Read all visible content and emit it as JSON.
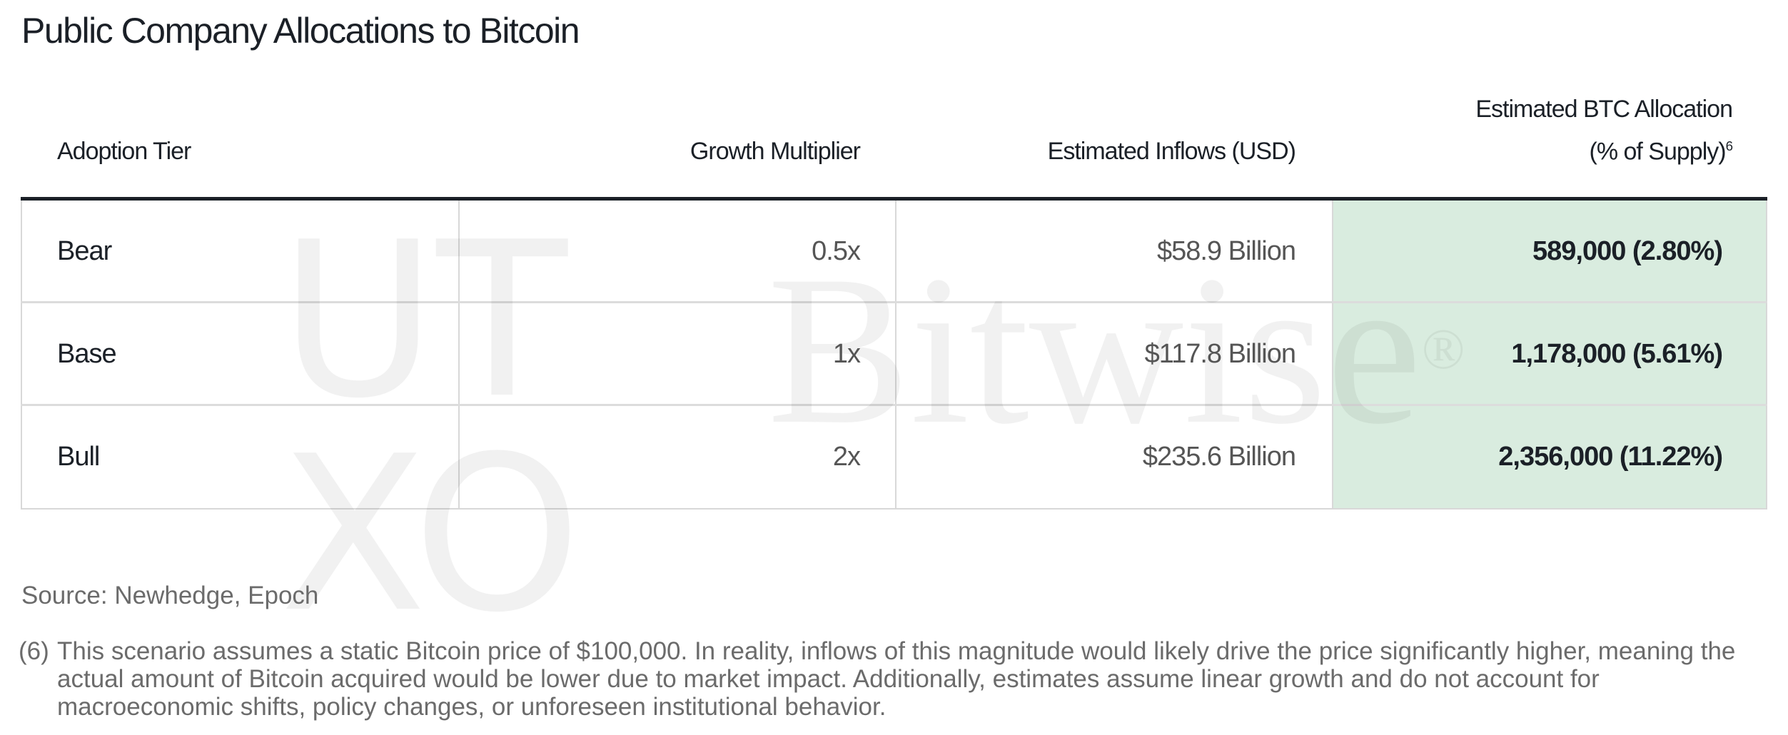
{
  "title": "Public Company Allocations to Bitcoin",
  "table": {
    "headers": [
      "Adoption Tier",
      "Growth Multiplier",
      "Estimated Inflows (USD)",
      "Estimated BTC Allocation",
      "(% of Supply)",
      "6"
    ],
    "rows": [
      {
        "tier": "Bear",
        "multiplier": "0.5x",
        "inflows": "$58.9 Billion",
        "allocation": "589,000 (2.80%)"
      },
      {
        "tier": "Base",
        "multiplier": "1x",
        "inflows": "$117.8 Billion",
        "allocation": "1,178,000 (5.61%)"
      },
      {
        "tier": "Bull",
        "multiplier": "2x",
        "inflows": "$235.6 Billion",
        "allocation": "2,356,000 (11.22%)"
      }
    ],
    "highlight_color": "#d9ecdf"
  },
  "watermarks": {
    "utxo": [
      "U",
      "T",
      "X",
      "O"
    ],
    "bitwise": "Bitwise",
    "registered": "®"
  },
  "source": "Source: Newhedge, Epoch",
  "footnote": {
    "number": "(6)",
    "text": "This scenario assumes a static Bitcoin price of $100,000. In reality, inflows of this magnitude would likely drive the price significantly higher, meaning the actual amount of Bitcoin acquired would be lower due to market impact. Additionally, estimates assume linear growth and do not account for macroeconomic shifts, policy changes, or unforeseen institutional behavior."
  }
}
